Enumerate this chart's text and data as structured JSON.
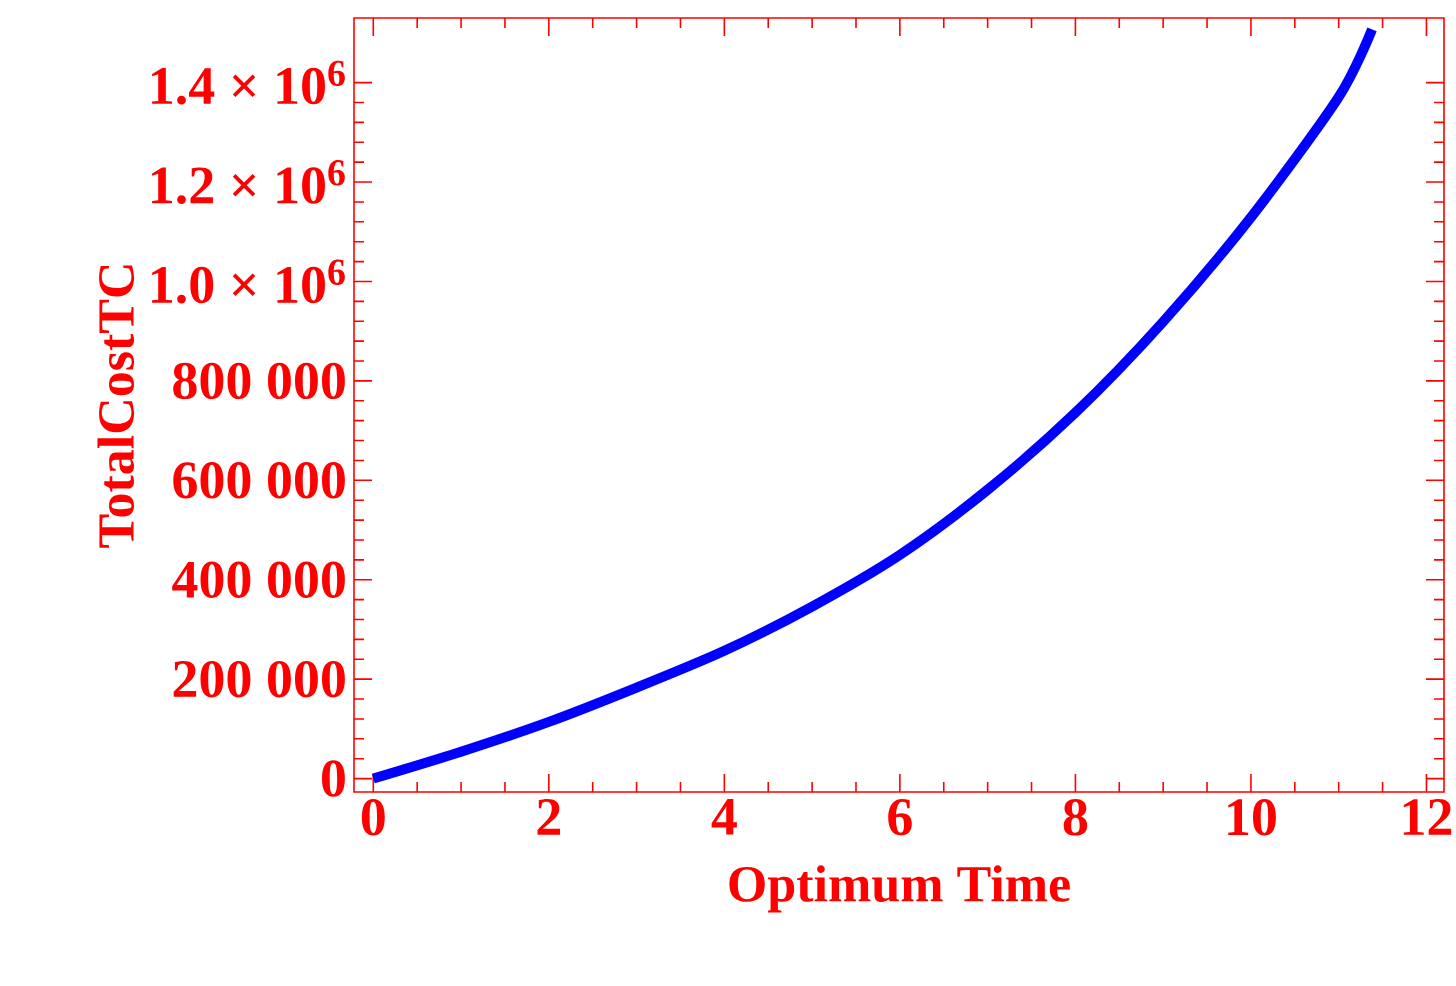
{
  "chart_data": {
    "type": "line",
    "xlabel": "Optimum Time",
    "ylabel": "TotalCostTC",
    "x": [
      0,
      1,
      2,
      3,
      4,
      5,
      6,
      7,
      8,
      9,
      10,
      11,
      11.38
    ],
    "series": [
      {
        "color": "#0000ff",
        "values": [
          0,
          54000,
          114000,
          183000,
          257000,
          346000,
          450000,
          581000,
          736000,
          919000,
          1129000,
          1371000,
          1507000
        ]
      }
    ],
    "xlim": [
      -0.22,
      12.2
    ],
    "ylim": [
      -27000,
      1530000
    ],
    "xticks": [
      0,
      2,
      4,
      6,
      8,
      10,
      12
    ],
    "yticks": [
      0,
      {
        "value": 200000,
        "label": "200 000"
      },
      {
        "value": 400000,
        "label": "400 000"
      },
      {
        "value": 600000,
        "label": "600 000"
      },
      {
        "value": 800000,
        "label": "800 000"
      },
      {
        "value": 1000000,
        "label": "1.0 × 10$^{6}$"
      },
      {
        "value": 1200000,
        "label": "1.2 × 10$^{6}$"
      },
      {
        "value": 1400000,
        "label": "1.4 × 10$^{6}$"
      }
    ],
    "grid": false,
    "marker": "none",
    "line_style": "solid"
  }
}
